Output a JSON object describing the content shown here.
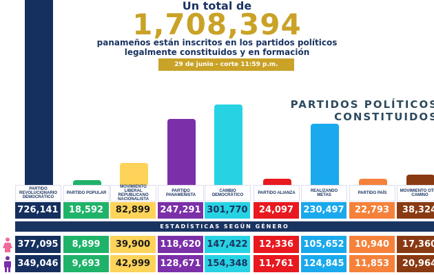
{
  "header": {
    "intro": "Un total de",
    "total": "1,708,394",
    "subtitle_line1": "panameños están inscritos en los partidos políticos",
    "subtitle_line2": "legalmente constituidos y en formación",
    "date_badge": "29 de junio - corte 11:59 p.m."
  },
  "section_title_line1": "PARTIDOS POLÍTICOS",
  "section_title_line2": "CONSTITUIDOS",
  "gender_header": "ESTADÍSTICAS SEGÚN GÉNERO",
  "gender_icons": {
    "female": "female-person-icon",
    "male": "male-person-icon",
    "female_color": "#f06a9a",
    "male_color": "#7b2fa8"
  },
  "chart_data": {
    "type": "bar",
    "categories": [
      "PARTIDO REVOLUCIONARIO DEMOCRÁTICO",
      "PARTIDO POPULAR",
      "MOVIMIENTO LIBERAL REPUBLICANO NACIONALISTA",
      "PARTIDO PANAMEÑISTA",
      "CAMBIO DEMOCRÁTICO",
      "PARTIDO ALIANZA",
      "REALIZANDO METAS",
      "PARTIDO PAÍS",
      "MOVIMIENTO OTRO CAMINO"
    ],
    "values": [
      726141,
      18592,
      82899,
      247291,
      301770,
      24097,
      230497,
      22793,
      38324
    ],
    "value_labels": [
      "726,141",
      "18,592",
      "82,899",
      "247,291",
      "301,770",
      "24,097",
      "230,497",
      "22,793",
      "38,324"
    ],
    "female": [
      "377,095",
      "8,899",
      "39,900",
      "118,620",
      "147,422",
      "12,336",
      "105,652",
      "10,940",
      "17,360"
    ],
    "male": [
      "349,046",
      "9,693",
      "42,999",
      "128,671",
      "154,348",
      "11,761",
      "124,845",
      "11,853",
      "20,964"
    ],
    "colors": [
      "#15305e",
      "#1fb36a",
      "#fdd35a",
      "#7b2fa8",
      "#27d3e3",
      "#e8191f",
      "#1aa9ec",
      "#f5813a",
      "#8a3a12"
    ],
    "text_colors": [
      "#fff",
      "#fff",
      "#1a1a1a",
      "#fff",
      "#1a3461",
      "#fff",
      "#fff",
      "#fff",
      "#fff"
    ]
  }
}
